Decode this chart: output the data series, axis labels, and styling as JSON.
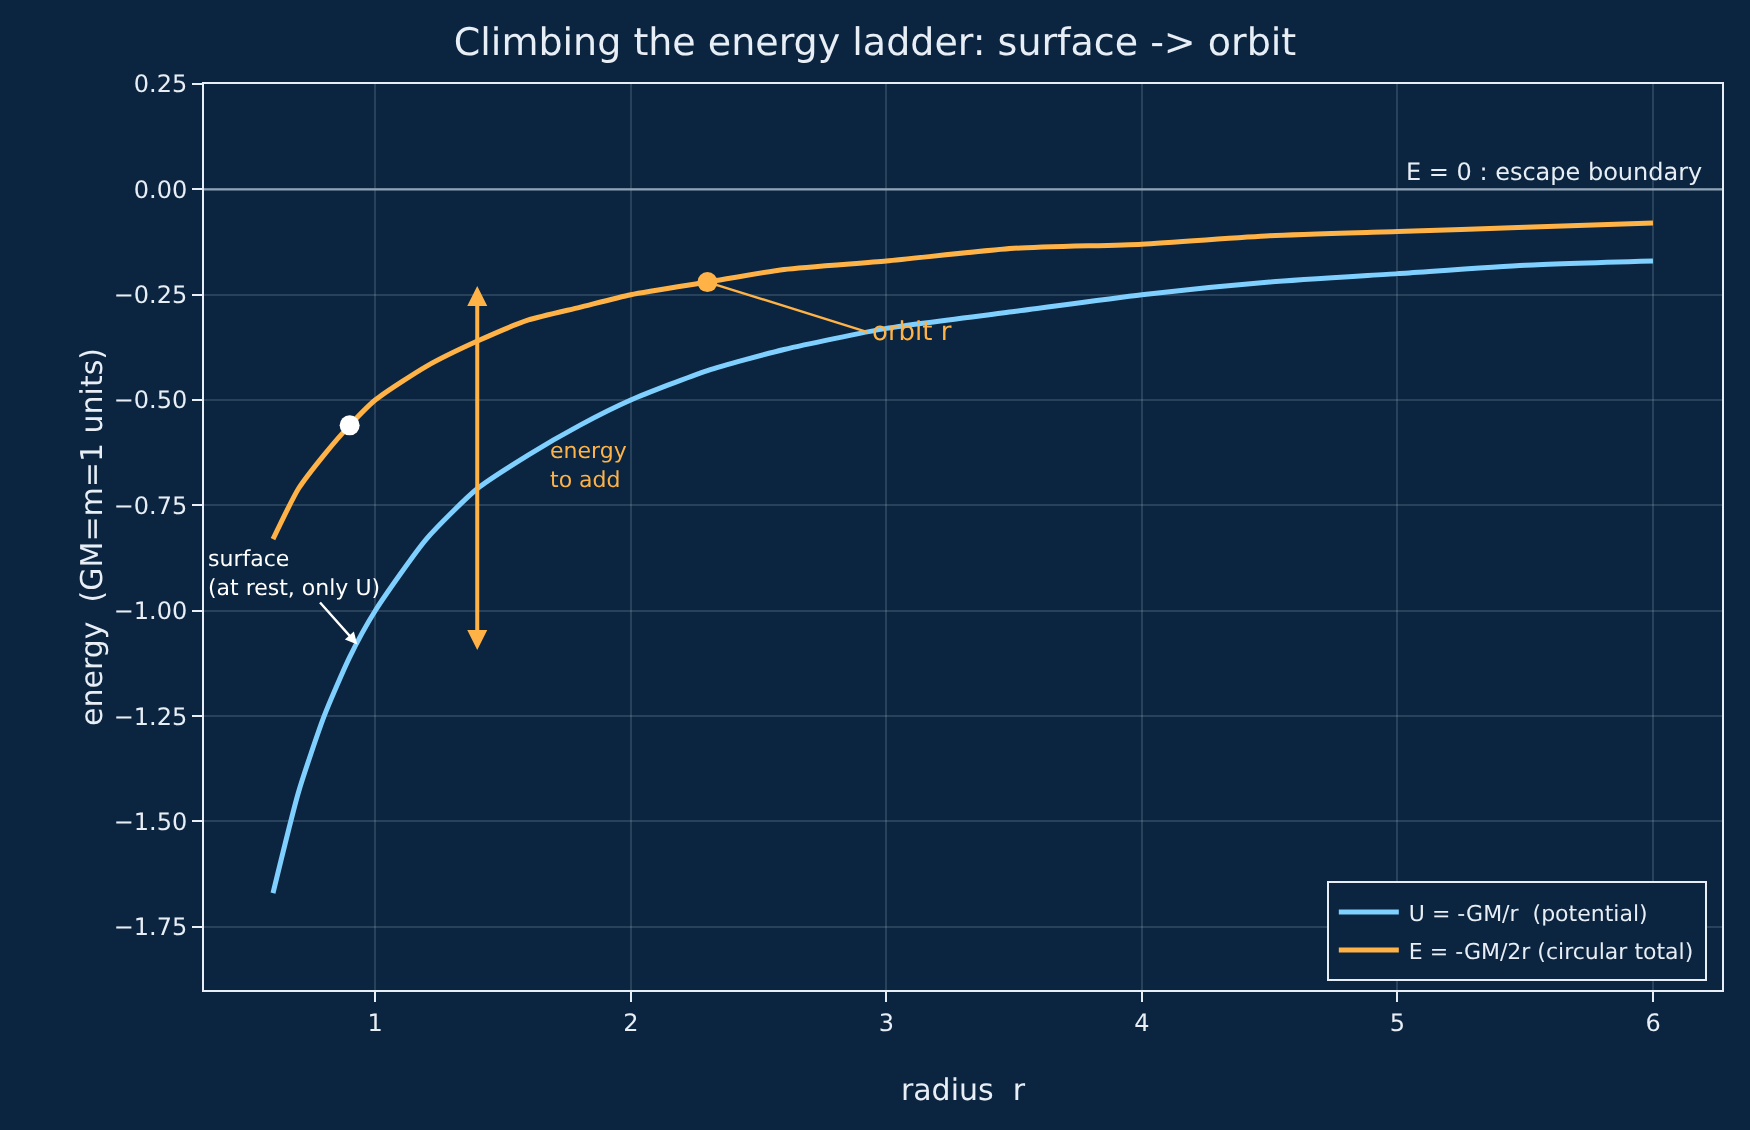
{
  "chart_data": {
    "type": "line",
    "title": "Climbing the energy ladder: surface -> orbit",
    "xlabel": "radius  r",
    "ylabel": "energy  (GM=m=1 units)",
    "xlim": [
      0.33,
      6.27
    ],
    "xticks": [
      1,
      2,
      3,
      4,
      5,
      6
    ],
    "ylim": [
      -1.9,
      0.25
    ],
    "yticks": [
      {
        "value": 0.25,
        "label": "0.25"
      },
      {
        "value": 0,
        "label": "0.00"
      },
      {
        "value": -0.25,
        "label": "−0.25"
      },
      {
        "value": -0.5,
        "label": "−0.50"
      },
      {
        "value": -0.75,
        "label": "−0.75"
      },
      {
        "value": -1,
        "label": "−1.00"
      },
      {
        "value": -1.25,
        "label": "−1.25"
      },
      {
        "value": -1.5,
        "label": "−1.50"
      },
      {
        "value": -1.75,
        "label": "−1.75"
      }
    ],
    "grid": true,
    "legend": "bottom right",
    "series": [
      {
        "name": "U = -GM/r  (potential)",
        "color": "#7fd0ff",
        "x": [
          0.6,
          0.7,
          0.8,
          0.9,
          1.0,
          1.2,
          1.4,
          1.6,
          1.8,
          2.0,
          2.3,
          2.6,
          3.0,
          3.5,
          4.0,
          4.5,
          5.0,
          5.5,
          6.0
        ],
        "values": [
          -1.67,
          -1.43,
          -1.25,
          -1.11,
          -1.0,
          -0.83,
          -0.71,
          -0.63,
          -0.56,
          -0.5,
          -0.43,
          -0.38,
          -0.33,
          -0.29,
          -0.25,
          -0.22,
          -0.2,
          -0.18,
          -0.17
        ]
      },
      {
        "name": "E = -GM/2r (circular total)",
        "color": "#ffb347",
        "x": [
          0.6,
          0.7,
          0.8,
          0.9,
          1.0,
          1.2,
          1.4,
          1.6,
          1.8,
          2.0,
          2.3,
          2.6,
          3.0,
          3.5,
          4.0,
          4.5,
          5.0,
          5.5,
          6.0
        ],
        "values": [
          -0.83,
          -0.71,
          -0.63,
          -0.56,
          -0.5,
          -0.42,
          -0.36,
          -0.31,
          -0.28,
          -0.25,
          -0.22,
          -0.19,
          -0.17,
          -0.14,
          -0.13,
          -0.11,
          -0.1,
          -0.09,
          -0.08
        ]
      },
      {
        "type": "scatter",
        "marker": "circle",
        "color": "#ffffff",
        "x": [
          0.9
        ],
        "values": [
          -0.56
        ]
      },
      {
        "type": "scatter",
        "marker": "circle",
        "color": "#ffb347",
        "x": [
          2.3
        ],
        "values": [
          -0.22
        ]
      }
    ],
    "ref_lines": [
      {
        "axis": "y",
        "value": 0,
        "label": "E = 0 : escape boundary",
        "color": "#8fa3b5"
      }
    ],
    "annotations": [
      {
        "text": "surface\n(at rest, only U)",
        "x": 0.93,
        "y": -1.08
      },
      {
        "text": "orbit r",
        "x": 2.3,
        "y": -0.22
      },
      "energy\nto add"
    ]
  }
}
